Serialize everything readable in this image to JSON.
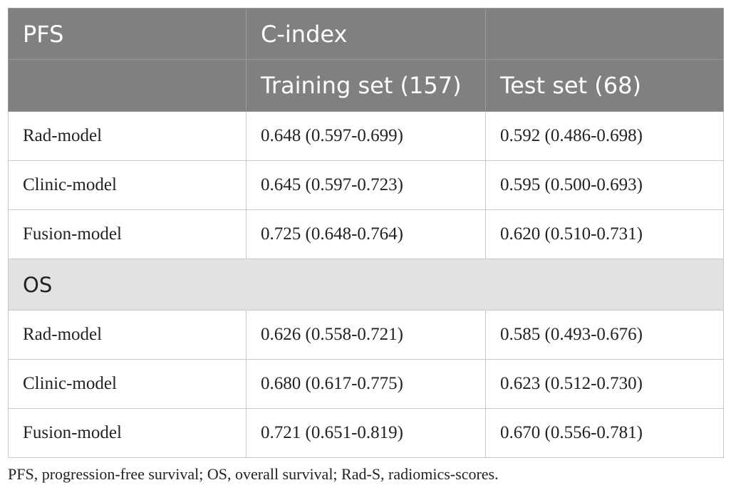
{
  "table": {
    "header": {
      "col1": "PFS",
      "col2": "C-index",
      "col3": "",
      "sub_col1": "",
      "sub_col2": "Training set (157)",
      "sub_col3": "Test set (68)"
    },
    "pfs_rows": [
      {
        "model": "Rad-model",
        "training": "0.648 (0.597-0.699)",
        "test": "0.592 (0.486-0.698)"
      },
      {
        "model": "Clinic-model",
        "training": "0.645 (0.597-0.723)",
        "test": "0.595 (0.500-0.693)"
      },
      {
        "model": "Fusion-model",
        "training": "0.725 (0.648-0.764)",
        "test": "0.620 (0.510-0.731)"
      }
    ],
    "os_section_label": "OS",
    "os_rows": [
      {
        "model": "Rad-model",
        "training": "0.626 (0.558-0.721)",
        "test": "0.585 (0.493-0.676)"
      },
      {
        "model": "Clinic-model",
        "training": "0.680 (0.617-0.775)",
        "test": "0.623 (0.512-0.730)"
      },
      {
        "model": "Fusion-model",
        "training": "0.721 (0.651-0.819)",
        "test": "0.670 (0.556-0.781)"
      }
    ]
  },
  "footnote": "PFS, progression-free survival; OS, overall survival; Rad-S, radiomics-scores."
}
